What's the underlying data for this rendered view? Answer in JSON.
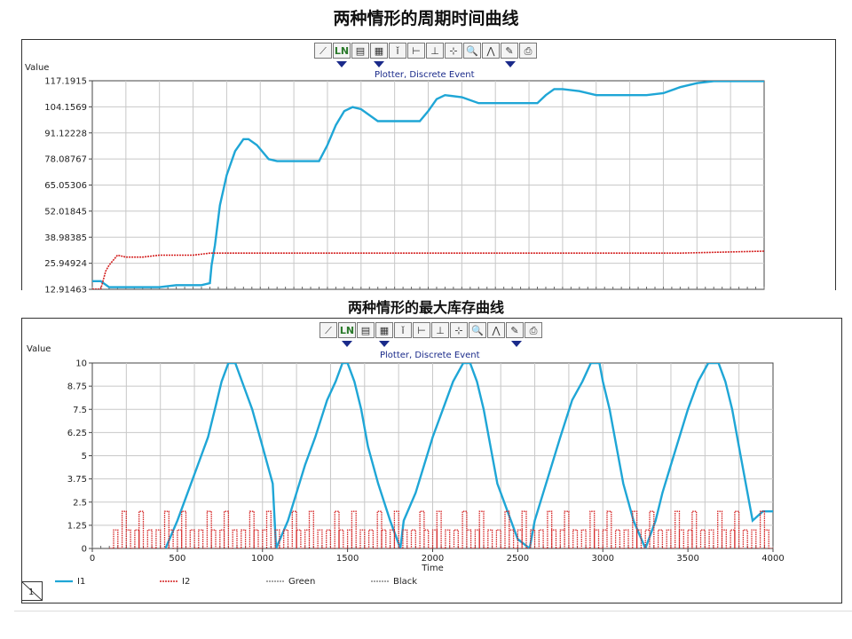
{
  "title_top": "两种情形的周期时间曲线",
  "title_bottom": "两种情形的最大库存曲线",
  "toolbar": {
    "icons": [
      "line-chart-icon",
      "log-scale-icon",
      "data-table-icon",
      "grid-icon",
      "marker-pin-icon",
      "axis-x-icon",
      "axis-y-icon",
      "crosshair-icon",
      "zoom-icon",
      "plot-style-icon",
      "pencil-icon",
      "print-icon"
    ],
    "glyphs": [
      "⟋",
      "LN",
      "▤",
      "▦",
      "ǐ",
      "⊢",
      "⊥",
      "⊹",
      "🔍",
      "⋀",
      "✎",
      "⎙"
    ]
  },
  "chart_data": [
    {
      "type": "line",
      "title": "Plotter, Discrete Event",
      "ylabel": "Value",
      "xlabel": "",
      "ylim": [
        12.91463,
        117.1915
      ],
      "xlim": [
        0,
        4000
      ],
      "yticks": [
        "117.1915",
        "104.1569",
        "91.12228",
        "78.08767",
        "65.05306",
        "52.01845",
        "38.98385",
        "25.94924",
        "12.91463"
      ],
      "grid": true,
      "colors": {
        "I1": "#1fa6d6",
        "I2": "#d42020"
      },
      "series": [
        {
          "name": "I1",
          "x": [
            0,
            50,
            100,
            200,
            300,
            400,
            500,
            600,
            650,
            700,
            710,
            730,
            760,
            800,
            850,
            900,
            930,
            980,
            1050,
            1100,
            1200,
            1300,
            1350,
            1400,
            1450,
            1500,
            1550,
            1600,
            1700,
            1800,
            1850,
            1900,
            1950,
            2000,
            2050,
            2100,
            2200,
            2300,
            2400,
            2500,
            2600,
            2650,
            2700,
            2750,
            2800,
            2900,
            3000,
            3100,
            3200,
            3300,
            3400,
            3500,
            3600,
            3700,
            3800,
            3900,
            4000
          ],
          "y": [
            17,
            17,
            14,
            14,
            14,
            14,
            15,
            15,
            15,
            16,
            25,
            35,
            55,
            70,
            82,
            88,
            88,
            85,
            78,
            77,
            77,
            77,
            77,
            85,
            95,
            102,
            104,
            103,
            97,
            97,
            97,
            97,
            97,
            102,
            108,
            110,
            109,
            106,
            106,
            106,
            106,
            106,
            110,
            113,
            113,
            112,
            110,
            110,
            110,
            110,
            111,
            114,
            116,
            117,
            117,
            117,
            117
          ]
        },
        {
          "name": "I2",
          "x": [
            0,
            50,
            80,
            100,
            150,
            200,
            300,
            400,
            500,
            600,
            700,
            800,
            900,
            1000,
            1200,
            1500,
            2000,
            2500,
            3000,
            3500,
            4000
          ],
          "y": [
            13,
            13,
            22,
            25,
            30,
            29,
            29,
            30,
            30,
            30,
            31,
            31,
            31,
            31,
            31,
            31,
            31,
            31,
            31,
            31,
            32
          ]
        }
      ]
    },
    {
      "type": "line",
      "title": "Plotter, Discrete Event",
      "ylabel": "Value",
      "xlabel": "Time",
      "ylim": [
        0,
        10
      ],
      "xlim": [
        0,
        4000
      ],
      "yticks": [
        "10",
        "8.75",
        "7.5",
        "6.25",
        "5",
        "3.75",
        "2.5",
        "1.25",
        "0"
      ],
      "xticks": [
        "0",
        "500",
        "1000",
        "1500",
        "2000",
        "2500",
        "3000",
        "3500",
        "4000"
      ],
      "grid": true,
      "colors": {
        "I1": "#1fa6d6",
        "I2": "#d42020"
      },
      "series": [
        {
          "name": "I1",
          "x": [
            430,
            500,
            560,
            620,
            680,
            720,
            760,
            800,
            840,
            880,
            940,
            1000,
            1060,
            1080,
            1150,
            1200,
            1250,
            1310,
            1380,
            1430,
            1470,
            1500,
            1540,
            1580,
            1620,
            1680,
            1750,
            1810,
            1830,
            1900,
            1950,
            2000,
            2060,
            2120,
            2180,
            2220,
            2260,
            2300,
            2340,
            2380,
            2440,
            2500,
            2570,
            2600,
            2650,
            2700,
            2750,
            2820,
            2880,
            2930,
            2980,
            3000,
            3040,
            3080,
            3120,
            3180,
            3250,
            3310,
            3350,
            3400,
            3450,
            3500,
            3560,
            3620,
            3680,
            3720,
            3760,
            3800,
            3840,
            3880,
            3940,
            4000
          ],
          "y": [
            0,
            1.5,
            3,
            4.5,
            6,
            7.5,
            9,
            10,
            10,
            9,
            7.5,
            5.5,
            3.5,
            0,
            1.5,
            3,
            4.5,
            6,
            8,
            9,
            10,
            10,
            9,
            7.5,
            5.5,
            3.5,
            1.5,
            0,
            1.5,
            3,
            4.5,
            6,
            7.5,
            9,
            10,
            10,
            9,
            7.5,
            5.5,
            3.5,
            2,
            0.5,
            0,
            1.5,
            3,
            4.5,
            6,
            8,
            9,
            10,
            10,
            9,
            7.5,
            5.5,
            3.5,
            1.5,
            0,
            1.5,
            3,
            4.5,
            6,
            7.5,
            9,
            10,
            10,
            9,
            7.5,
            5.5,
            3.5,
            1.5,
            2,
            2
          ]
        }
      ],
      "legend": [
        {
          "name": "I1",
          "style": "solid",
          "color": "#1fa6d6"
        },
        {
          "name": "I2",
          "style": "dotted",
          "color": "#d42020"
        },
        {
          "name": "Green",
          "style": "dotted",
          "color": "#888888"
        },
        {
          "name": "Black",
          "style": "dotted",
          "color": "#888888"
        }
      ],
      "legend_position": "bottom-left"
    }
  ],
  "corner_label": "1"
}
